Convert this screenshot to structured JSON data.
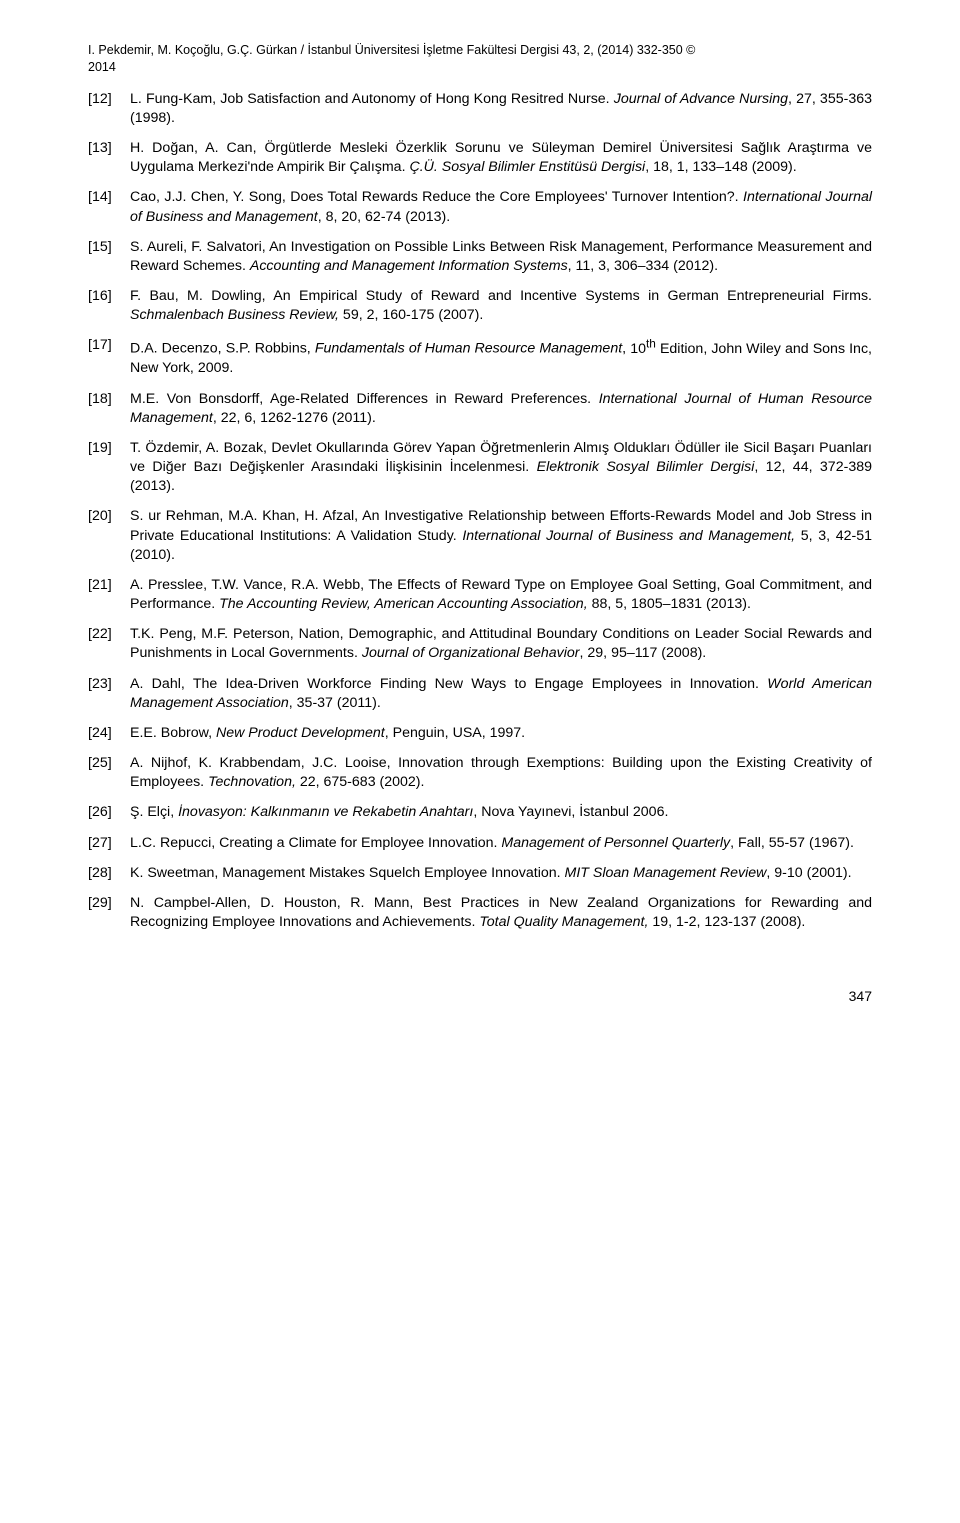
{
  "header": {
    "line1": "I. Pekdemir, M. Koçoğlu, G.Ç. Gürkan / İstanbul Üniversitesi İşletme Fakültesi Dergisi 43, 2, (2014) 332-350 ©",
    "line2": "2014"
  },
  "refs": [
    {
      "n": "[12]",
      "pre": "L. Fung-Kam, Job Satisfaction and Autonomy of Hong Kong Resitred Nurse. ",
      "it": "Journal of Advance Nursing",
      "post": ", 27, 355-363 (1998)."
    },
    {
      "n": "[13]",
      "pre": "H. Doğan, A. Can, Örgütlerde Mesleki Özerklik Sorunu ve Süleyman Demirel Üniversitesi Sağlık Araştırma ve Uygulama Merkezi'nde Ampirik Bir Çalışma. ",
      "it": "Ç.Ü. Sosyal Bilimler Enstitüsü Dergisi",
      "post": ", 18, 1, 133–148 (2009)."
    },
    {
      "n": "[14]",
      "pre": "Cao, J.J. Chen, Y. Song, Does Total Rewards Reduce the Core Employees' Turnover Intention?. ",
      "it": "International Journal of Business and Management",
      "post": ", 8, 20, 62-74 (2013)."
    },
    {
      "n": "[15]",
      "pre": "S. Aureli, F. Salvatori, An Investigation on Possible Links Between Risk Management, Performance Measurement and Reward Schemes. ",
      "it": "Accounting and Management Information Systems",
      "post": ", 11, 3, 306–334 (2012)."
    },
    {
      "n": "[16]",
      "pre": "F. Bau, M. Dowling, An Empirical Study of Reward and Incentive Systems in German Entrepreneurial Firms. ",
      "it": "Schmalenbach Business Review,",
      "post": " 59, 2, 160-175 (2007)."
    },
    {
      "n": "[17]",
      "pre": "D.A. Decenzo, S.P. Robbins, ",
      "it": "Fundamentals of Human Resource Management",
      "post": ",",
      "extraHtml": " 10<sup>th</sup> Edition, John Wiley and Sons Inc, New York, 2009."
    },
    {
      "n": "[18]",
      "pre": "M.E. Von Bonsdorff, Age-Related Differences in Reward Preferences. ",
      "it": "International Journal of Human Resource Management",
      "post": ", 22, 6, 1262-1276 (2011)."
    },
    {
      "n": "[19]",
      "pre": "T. Özdemir, A. Bozak, Devlet Okullarında Görev Yapan Öğretmenlerin Almış Oldukları Ödüller ile Sicil Başarı Puanları ve Diğer Bazı Değişkenler Arasındaki İlişkisinin İncelenmesi. ",
      "it": "Elektronik Sosyal Bilimler Dergisi",
      "post": ", 12, 44, 372-389 (2013)."
    },
    {
      "n": "[20]",
      "pre": "S. ur Rehman, M.A. Khan, H. Afzal, An Investigative Relationship between Efforts-Rewards Model and Job Stress in Private Educational Institutions: A Validation Study. ",
      "it": "International Journal of Business and Management,",
      "post": " 5, 3, 42-51 (2010)."
    },
    {
      "n": "[21]",
      "pre": "A. Presslee, T.W. Vance, R.A. Webb, The Effects of Reward Type on Employee Goal Setting, Goal Commitment, and Performance. ",
      "it": "The Accounting Review, American Accounting Association,",
      "post": " 88, 5, 1805–1831 (2013)."
    },
    {
      "n": "[22]",
      "pre": "T.K. Peng, M.F. Peterson, Nation, Demographic, and Attitudinal Boundary Conditions on Leader Social Rewards and Punishments in Local Governments. ",
      "it": "Journal of Organizational Behavior",
      "post": ", 29, 95–117 (2008)."
    },
    {
      "n": "[23]",
      "pre": "A. Dahl, The Idea-Driven Workforce Finding New Ways to Engage Employees in Innovation. ",
      "it": "World American Management Association",
      "post": ", 35-37 (2011)."
    },
    {
      "n": "[24]",
      "pre": "E.E. Bobrow, ",
      "it": "New Product Development",
      "post": ", Penguin, USA, 1997."
    },
    {
      "n": "[25]",
      "pre": "A. Nijhof, K. Krabbendam, J.C. Looise, Innovation through Exemptions: Building upon the Existing Creativity of Employees. ",
      "it": "Technovation,",
      "post": " 22, 675-683 (2002)."
    },
    {
      "n": "[26]",
      "pre": "Ş. Elçi, ",
      "it": "İnovasyon: Kalkınmanın ve Rekabetin Anahtarı",
      "post": ", Nova Yayınevi, İstanbul 2006."
    },
    {
      "n": "[27]",
      "pre": "L.C. Repucci, Creating a Climate for Employee Innovation. ",
      "it": "Management of Personnel Quarterly",
      "post": ", Fall, 55-57 (1967)."
    },
    {
      "n": "[28]",
      "pre": "K. Sweetman, Management Mistakes Squelch Employee Innovation. ",
      "it": "MIT Sloan Management Review",
      "post": ", 9-10 (2001)."
    },
    {
      "n": "[29]",
      "pre": "N. Campbel-Allen, D. Houston, R. Mann, Best Practices in New Zealand Organizations for Rewarding and Recognizing Employee Innovations and Achievements. ",
      "it": "Total Quality Management,",
      "post": " 19, 1-2, 123-137 (2008)."
    }
  ],
  "pageNumber": "347"
}
